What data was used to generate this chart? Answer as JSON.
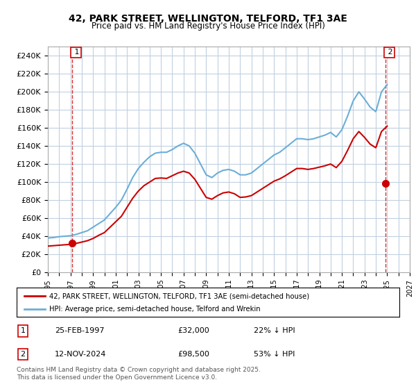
{
  "title": "42, PARK STREET, WELLINGTON, TELFORD, TF1 3AE",
  "subtitle": "Price paid vs. HM Land Registry's House Price Index (HPI)",
  "ylim": [
    0,
    250000
  ],
  "yticks": [
    0,
    20000,
    40000,
    60000,
    80000,
    100000,
    120000,
    140000,
    160000,
    180000,
    200000,
    220000,
    240000
  ],
  "ytick_labels": [
    "£0",
    "£20K",
    "£40K",
    "£60K",
    "£80K",
    "£100K",
    "£120K",
    "£140K",
    "£160K",
    "£180K",
    "£200K",
    "£220K",
    "£240K"
  ],
  "xlim_start": 1995.0,
  "xlim_end": 2027.0,
  "hpi_color": "#6baed6",
  "price_color": "#cc0000",
  "dot_color": "#cc0000",
  "background_color": "#ffffff",
  "grid_color": "#c0d0e0",
  "sale1_x": 1997.15,
  "sale1_y": 32000,
  "sale1_label": "1",
  "sale2_x": 2024.87,
  "sale2_y": 98500,
  "sale2_label": "2",
  "legend_line1": "42, PARK STREET, WELLINGTON, TELFORD, TF1 3AE (semi-detached house)",
  "legend_line2": "HPI: Average price, semi-detached house, Telford and Wrekin",
  "annotation1_date": "25-FEB-1997",
  "annotation1_price": "£32,000",
  "annotation1_hpi": "22% ↓ HPI",
  "annotation2_date": "12-NOV-2024",
  "annotation2_price": "£98,500",
  "annotation2_hpi": "53% ↓ HPI",
  "footer": "Contains HM Land Registry data © Crown copyright and database right 2025.\nThis data is licensed under the Open Government Licence v3.0.",
  "hpi_x": [
    1995.0,
    1995.5,
    1996.0,
    1996.5,
    1997.0,
    1997.5,
    1998.0,
    1998.5,
    1999.0,
    1999.5,
    2000.0,
    2000.5,
    2001.0,
    2001.5,
    2002.0,
    2002.5,
    2003.0,
    2003.5,
    2004.0,
    2004.5,
    2005.0,
    2005.5,
    2006.0,
    2006.5,
    2007.0,
    2007.5,
    2008.0,
    2008.5,
    2009.0,
    2009.5,
    2010.0,
    2010.5,
    2011.0,
    2011.5,
    2012.0,
    2012.5,
    2013.0,
    2013.5,
    2014.0,
    2014.5,
    2015.0,
    2015.5,
    2016.0,
    2016.5,
    2017.0,
    2017.5,
    2018.0,
    2018.5,
    2019.0,
    2019.5,
    2020.0,
    2020.5,
    2021.0,
    2021.5,
    2022.0,
    2022.5,
    2023.0,
    2023.5,
    2024.0,
    2024.5,
    2025.0
  ],
  "hpi_y": [
    38000,
    38500,
    39500,
    40000,
    40500,
    42000,
    44000,
    46000,
    50000,
    54000,
    58000,
    65000,
    72000,
    80000,
    92000,
    105000,
    115000,
    122000,
    128000,
    132000,
    133000,
    133000,
    136000,
    140000,
    143000,
    140000,
    132000,
    120000,
    108000,
    105000,
    110000,
    113000,
    114000,
    112000,
    108000,
    108000,
    110000,
    115000,
    120000,
    125000,
    130000,
    133000,
    138000,
    143000,
    148000,
    148000,
    147000,
    148000,
    150000,
    152000,
    155000,
    150000,
    158000,
    173000,
    190000,
    200000,
    192000,
    183000,
    178000,
    200000,
    208000
  ],
  "price_x": [
    1995.0,
    1995.5,
    1996.0,
    1996.5,
    1997.0,
    1997.5,
    1998.0,
    1998.5,
    1999.0,
    1999.5,
    2000.0,
    2000.5,
    2001.0,
    2001.5,
    2002.0,
    2002.5,
    2003.0,
    2003.5,
    2004.0,
    2004.5,
    2005.0,
    2005.5,
    2006.0,
    2006.5,
    2007.0,
    2007.5,
    2008.0,
    2008.5,
    2009.0,
    2009.5,
    2010.0,
    2010.5,
    2011.0,
    2011.5,
    2012.0,
    2012.5,
    2013.0,
    2013.5,
    2014.0,
    2014.5,
    2015.0,
    2015.5,
    2016.0,
    2016.5,
    2017.0,
    2017.5,
    2018.0,
    2018.5,
    2019.0,
    2019.5,
    2020.0,
    2020.5,
    2021.0,
    2021.5,
    2022.0,
    2022.5,
    2023.0,
    2023.5,
    2024.0,
    2024.5,
    2025.0
  ],
  "price_y": [
    29000,
    29500,
    30000,
    30500,
    31000,
    32000,
    33500,
    35000,
    37500,
    41000,
    44000,
    50000,
    56000,
    62000,
    72000,
    82000,
    90000,
    96000,
    100000,
    104000,
    104500,
    104000,
    107000,
    110000,
    112000,
    110000,
    103000,
    93000,
    83000,
    81000,
    85000,
    88000,
    89000,
    87000,
    83000,
    83500,
    85000,
    89000,
    93000,
    97000,
    101000,
    103500,
    107000,
    111000,
    115000,
    115000,
    114000,
    115000,
    116500,
    118000,
    120000,
    116000,
    123000,
    135000,
    148000,
    156000,
    149500,
    142000,
    138000,
    156000,
    162000
  ]
}
